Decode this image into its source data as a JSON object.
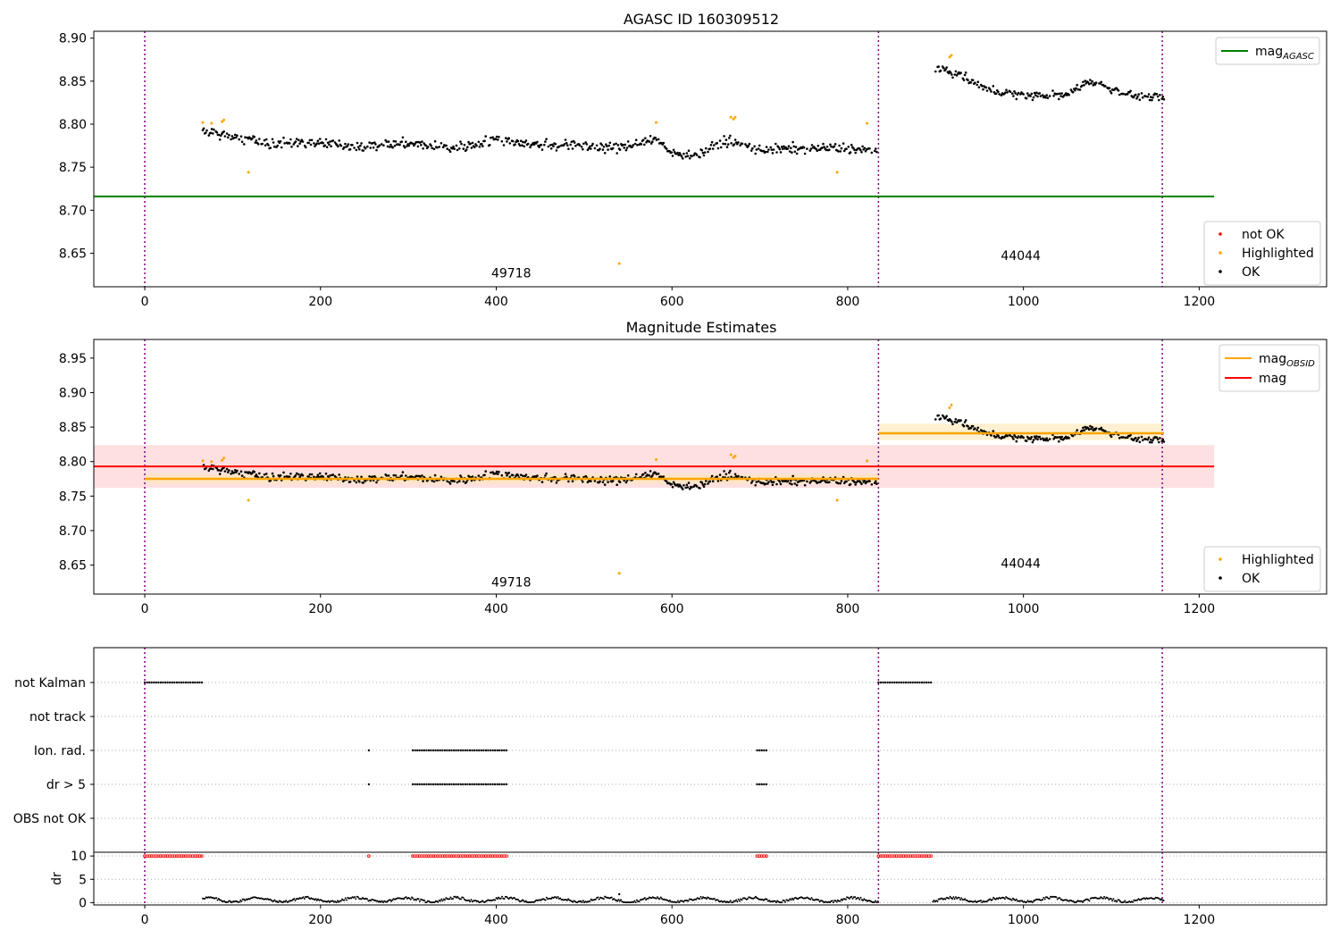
{
  "colors": {
    "ok": "#000000",
    "highlighted": "#ffa500",
    "not_ok": "#ff0000",
    "mag_agasc": "#008000",
    "mag_obsid": "#ffa500",
    "mag": "#ff0000",
    "obs_boundary": "#800080",
    "mag_band": "#ffcccc",
    "obsid_band": "#ffe8b8"
  },
  "chart_data": [
    {
      "id": "top",
      "type": "scatter",
      "title": "AGASC ID 160309512",
      "xlim": [
        -58,
        1345
      ],
      "ylim": [
        8.611,
        8.908
      ],
      "xticks": [
        0,
        200,
        400,
        600,
        800,
        1000,
        1200
      ],
      "xtick_labels": [
        "0",
        "200",
        "400",
        "600",
        "800",
        "1000",
        "1200"
      ],
      "yticks": [
        8.65,
        8.7,
        8.75,
        8.8,
        8.85,
        8.9
      ],
      "ytick_labels": [
        "8.65",
        "8.70",
        "8.75",
        "8.80",
        "8.85",
        "8.90"
      ],
      "obs_boundaries": [
        0,
        835,
        1158
      ],
      "obs_labels": [
        {
          "text": "49718",
          "x": 417,
          "y": 8.622
        },
        {
          "text": "44044",
          "x": 997,
          "y": 8.642
        }
      ],
      "mag_agasc": {
        "value": 8.716,
        "x_range": [
          -58,
          1217
        ]
      },
      "legend_lines": [
        {
          "label": "mag",
          "sub": "AGASC",
          "color_key": "mag_agasc"
        }
      ],
      "legend_points": [
        {
          "label": "not OK",
          "color_key": "not_ok"
        },
        {
          "label": "Highlighted",
          "color_key": "highlighted"
        },
        {
          "label": "OK",
          "color_key": "ok"
        }
      ],
      "highlighted_points": [
        [
          66,
          8.802
        ],
        [
          76,
          8.801
        ],
        [
          88,
          8.803
        ],
        [
          90,
          8.805
        ],
        [
          118,
          8.744
        ],
        [
          540,
          8.638
        ],
        [
          582,
          8.802
        ],
        [
          667,
          8.808
        ],
        [
          670,
          8.806
        ],
        [
          672,
          8.808
        ],
        [
          788,
          8.744
        ],
        [
          822,
          8.801
        ],
        [
          916,
          8.878
        ],
        [
          918,
          8.88
        ]
      ],
      "ok_segments": [
        {
          "x": [
            66,
            100,
            140,
            200,
            250,
            300,
            350,
            400,
            450,
            500,
            540,
            580,
            600,
            630,
            660,
            680,
            700,
            750,
            800,
            835
          ],
          "y": [
            8.792,
            8.785,
            8.778,
            8.778,
            8.774,
            8.778,
            8.772,
            8.782,
            8.776,
            8.775,
            8.772,
            8.784,
            8.766,
            8.765,
            8.78,
            8.776,
            8.77,
            8.772,
            8.772,
            8.768
          ],
          "spread": 0.01
        },
        {
          "x": [
            900,
            925,
            960,
            1000,
            1050,
            1075,
            1100,
            1130,
            1160
          ],
          "y": [
            8.865,
            8.858,
            8.84,
            8.833,
            8.834,
            8.851,
            8.841,
            8.832,
            8.831
          ],
          "spread": 0.008
        }
      ]
    },
    {
      "id": "mid",
      "type": "scatter",
      "title": "Magnitude Estimates",
      "xlim": [
        -58,
        1345
      ],
      "ylim": [
        8.608,
        8.977
      ],
      "xticks": [
        0,
        200,
        400,
        600,
        800,
        1000,
        1200
      ],
      "xtick_labels": [
        "0",
        "200",
        "400",
        "600",
        "800",
        "1000",
        "1200"
      ],
      "yticks": [
        8.65,
        8.7,
        8.75,
        8.8,
        8.85,
        8.9,
        8.95
      ],
      "ytick_labels": [
        "8.65",
        "8.70",
        "8.75",
        "8.80",
        "8.85",
        "8.90",
        "8.95"
      ],
      "obs_boundaries": [
        0,
        835,
        1158
      ],
      "obs_labels": [
        {
          "text": "49718",
          "x": 417,
          "y": 8.619
        },
        {
          "text": "44044",
          "x": 997,
          "y": 8.646
        }
      ],
      "mag": {
        "value": 8.793,
        "band": [
          8.762,
          8.824
        ],
        "x_range": [
          -58,
          1217
        ]
      },
      "mag_obsid": [
        {
          "value": 8.775,
          "band": [
            8.768,
            8.782
          ],
          "x_range": [
            0,
            835
          ]
        },
        {
          "value": 8.841,
          "band": [
            8.831,
            8.855
          ],
          "x_range": [
            835,
            1160
          ]
        }
      ],
      "legend_lines": [
        {
          "label": "mag",
          "sub": "OBSID",
          "color_key": "mag_obsid"
        },
        {
          "label": "mag",
          "sub": "",
          "color_key": "mag"
        }
      ],
      "legend_points": [
        {
          "label": "Highlighted",
          "color_key": "highlighted"
        },
        {
          "label": "OK",
          "color_key": "ok"
        }
      ],
      "highlighted_points": [
        [
          66,
          8.801
        ],
        [
          76,
          8.8
        ],
        [
          88,
          8.802
        ],
        [
          90,
          8.805
        ],
        [
          118,
          8.744
        ],
        [
          540,
          8.638
        ],
        [
          582,
          8.803
        ],
        [
          667,
          8.81
        ],
        [
          670,
          8.806
        ],
        [
          672,
          8.808
        ],
        [
          788,
          8.744
        ],
        [
          822,
          8.801
        ],
        [
          916,
          8.878
        ],
        [
          918,
          8.882
        ]
      ],
      "ok_segments": [
        {
          "x": [
            66,
            100,
            140,
            200,
            250,
            300,
            350,
            400,
            450,
            500,
            540,
            580,
            600,
            630,
            660,
            680,
            700,
            750,
            800,
            835
          ],
          "y": [
            8.792,
            8.785,
            8.778,
            8.778,
            8.774,
            8.778,
            8.772,
            8.782,
            8.776,
            8.775,
            8.772,
            8.784,
            8.766,
            8.765,
            8.78,
            8.776,
            8.77,
            8.772,
            8.772,
            8.768
          ],
          "spread": 0.01
        },
        {
          "x": [
            900,
            925,
            960,
            1000,
            1050,
            1075,
            1100,
            1130,
            1160
          ],
          "y": [
            8.865,
            8.858,
            8.84,
            8.833,
            8.834,
            8.851,
            8.841,
            8.832,
            8.831
          ],
          "spread": 0.008
        }
      ]
    },
    {
      "id": "flags",
      "type": "scatter",
      "xlim": [
        -58,
        1345
      ],
      "obs_boundaries": [
        0,
        835,
        1158
      ],
      "categories": [
        "not Kalman",
        "not track",
        "Ion. rad.",
        "dr > 5",
        "OBS not OK"
      ],
      "flag_ranges": {
        "not Kalman": [
          [
            0,
            66
          ],
          [
            835,
            897
          ]
        ],
        "not track": [],
        "Ion. rad.": [
          [
            255,
            255
          ],
          [
            305,
            412
          ],
          [
            697,
            710
          ]
        ],
        "dr > 5": [
          [
            255,
            255
          ],
          [
            305,
            412
          ],
          [
            697,
            710
          ]
        ],
        "OBS not OK": []
      }
    },
    {
      "id": "dr",
      "type": "scatter",
      "xlim": [
        -58,
        1345
      ],
      "ylim": [
        -0.5,
        10.8
      ],
      "ylabel": "dr",
      "xticks": [
        0,
        200,
        400,
        600,
        800,
        1000,
        1200
      ],
      "xtick_labels": [
        "0",
        "200",
        "400",
        "600",
        "800",
        "1000",
        "1200"
      ],
      "yticks": [
        0,
        5,
        10
      ],
      "ytick_labels": [
        "0",
        "5",
        "10"
      ],
      "obs_boundaries": [
        0,
        835,
        1158
      ],
      "red_ranges": [
        [
          0,
          66
        ],
        [
          255,
          255
        ],
        [
          305,
          412
        ],
        [
          697,
          710
        ],
        [
          835,
          897
        ]
      ],
      "dr_ranges": [
        [
          66,
          835
        ],
        [
          897,
          1160
        ]
      ],
      "dr_outlier": [
        540,
        1.8
      ]
    }
  ]
}
